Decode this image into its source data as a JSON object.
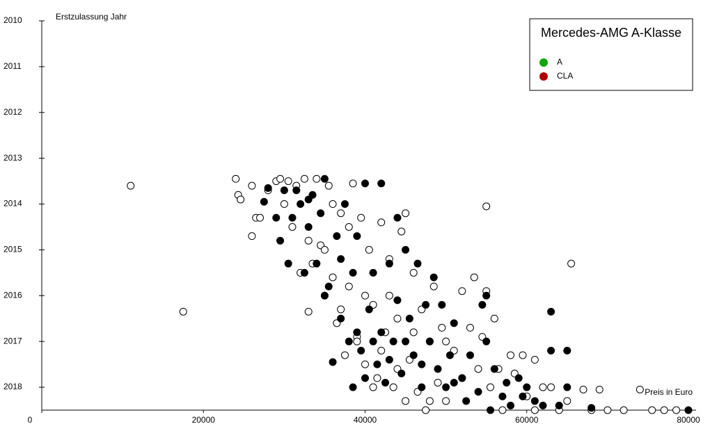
{
  "chart_data": {
    "type": "scatter",
    "title": "Mercedes-AMG A-Klasse",
    "x_label": "Preis in Euro",
    "y_label": "Erstzulassung Jahr",
    "xlim": [
      0,
      80000
    ],
    "xticks": [
      0,
      20000,
      40000,
      60000,
      80000
    ],
    "ylim": [
      2010,
      2018.5
    ],
    "yticks": [
      2010,
      2011,
      2012,
      2013,
      2014,
      2015,
      2016,
      2017,
      2018
    ],
    "y_reversed": true,
    "legend": "upper right",
    "series": [
      {
        "name": "A",
        "color": "#11a611",
        "marker_fill": "#ffffff",
        "x": [
          11000,
          17500,
          24000,
          24300,
          24600,
          26000,
          26000,
          26500,
          27000,
          28000,
          29000,
          29500,
          30000,
          30500,
          31000,
          31500,
          32000,
          32500,
          33000,
          33000,
          33500,
          34000,
          34500,
          35000,
          35500,
          36000,
          36500,
          37000,
          37500,
          38000,
          38500,
          39000,
          39500,
          40000,
          40500,
          41000,
          41500,
          42000,
          42500,
          43000,
          43500,
          44000,
          44500,
          45000,
          45500,
          46000,
          46500,
          47000,
          47500,
          48000,
          48500,
          49000,
          49500,
          50000,
          51000,
          52000,
          53000,
          53500,
          54000,
          54500,
          55000,
          55000,
          55500,
          56000,
          56500,
          57000,
          58000,
          58500,
          59500,
          60000,
          61000,
          61000,
          62000,
          63000,
          64000,
          65000,
          65500,
          67000,
          68000,
          69000,
          70000,
          72000,
          74000,
          75500,
          77000,
          78500,
          36000,
          38000,
          40000,
          42000,
          44000,
          46000,
          48000,
          50000,
          52000,
          35000,
          37000,
          39000,
          41000,
          43000,
          45000
        ],
        "values": [
          2013.6,
          2016.35,
          2013.45,
          2013.8,
          2013.9,
          2013.6,
          2014.7,
          2014.3,
          2014.3,
          2013.7,
          2013.5,
          2013.45,
          2014.0,
          2013.5,
          2014.5,
          2013.6,
          2015.5,
          2013.45,
          2016.35,
          2014.8,
          2015.3,
          2013.45,
          2014.9,
          2016.0,
          2013.6,
          2015.6,
          2016.6,
          2014.2,
          2017.3,
          2015.8,
          2013.55,
          2016.9,
          2014.3,
          2017.5,
          2015.0,
          2016.2,
          2017.8,
          2014.4,
          2016.8,
          2015.2,
          2018.0,
          2016.5,
          2014.6,
          2014.2,
          2017.4,
          2015.5,
          2018.1,
          2016.3,
          2018.5,
          2017.0,
          2015.8,
          2017.9,
          2016.7,
          2018.3,
          2017.2,
          2015.9,
          2016.7,
          2015.6,
          2017.6,
          2016.9,
          2014.05,
          2015.9,
          2018.0,
          2016.5,
          2017.6,
          2018.5,
          2017.3,
          2017.7,
          2017.3,
          2018.2,
          2017.4,
          2018.5,
          2018.0,
          2018.0,
          2018.5,
          2018.3,
          2015.3,
          2018.05,
          2018.5,
          2018.05,
          2018.5,
          2018.5,
          2018.05,
          2018.5,
          2018.5,
          2018.5,
          2014.0,
          2014.5,
          2016.0,
          2017.2,
          2017.6,
          2016.8,
          2018.3,
          2017.0,
          2017.8,
          2015.0,
          2016.3,
          2017.0,
          2018.0,
          2016.0,
          2018.3
        ]
      },
      {
        "name": "CLA",
        "color": "#b00000",
        "marker_fill": "#000000",
        "x": [
          27500,
          28000,
          29000,
          29500,
          30000,
          30500,
          31000,
          31500,
          32000,
          32500,
          33000,
          33500,
          34000,
          34500,
          35000,
          35500,
          36000,
          36500,
          37000,
          37500,
          38000,
          38500,
          39000,
          39500,
          40000,
          40000,
          40500,
          41000,
          41500,
          42000,
          42000,
          42500,
          43000,
          43500,
          44000,
          44000,
          44500,
          45000,
          45500,
          46000,
          46500,
          47000,
          47500,
          48000,
          48500,
          49000,
          49500,
          50000,
          50500,
          51000,
          52000,
          52500,
          53000,
          54000,
          54500,
          55000,
          55000,
          55500,
          56000,
          57000,
          58000,
          59000,
          59500,
          60000,
          61000,
          62000,
          63000,
          63000,
          64000,
          65000,
          65000,
          68000,
          80000,
          41000,
          43000,
          45000,
          39000,
          37000,
          35000,
          33000,
          38500,
          47000,
          51000,
          57500
        ],
        "values": [
          2013.95,
          2013.65,
          2014.3,
          2014.8,
          2013.7,
          2015.3,
          2014.3,
          2013.7,
          2014.0,
          2015.5,
          2014.5,
          2013.8,
          2015.3,
          2014.2,
          2013.45,
          2015.8,
          2017.45,
          2014.7,
          2016.5,
          2014.0,
          2017.0,
          2015.5,
          2014.7,
          2017.2,
          2013.55,
          2017.8,
          2016.3,
          2015.5,
          2017.5,
          2013.55,
          2016.8,
          2017.9,
          2015.3,
          2017.0,
          2014.3,
          2016.1,
          2017.7,
          2015.0,
          2016.5,
          2017.3,
          2015.3,
          2018.0,
          2016.2,
          2017.0,
          2015.6,
          2017.6,
          2016.2,
          2018.0,
          2017.3,
          2016.6,
          2017.8,
          2018.3,
          2017.3,
          2018.1,
          2016.2,
          2016.0,
          2017.0,
          2018.5,
          2017.6,
          2018.2,
          2018.4,
          2017.8,
          2018.2,
          2018.0,
          2018.3,
          2018.4,
          2016.35,
          2017.2,
          2018.4,
          2017.2,
          2018.0,
          2018.45,
          2018.5,
          2017.0,
          2017.4,
          2017.0,
          2016.8,
          2015.2,
          2016.0,
          2013.9,
          2018.0,
          2017.5,
          2017.9,
          2017.9
        ]
      }
    ]
  }
}
